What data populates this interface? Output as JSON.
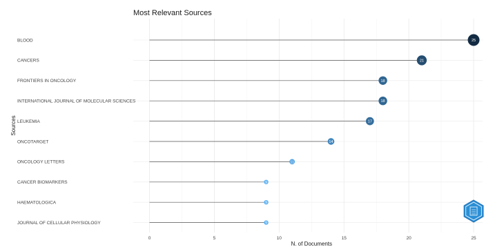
{
  "chart_data": {
    "type": "lollipop",
    "title": "Most Relevant Sources",
    "xlabel": "N. of Documents",
    "ylabel": "Sources",
    "xlim": [
      0,
      25
    ],
    "xticks": [
      "0",
      "5",
      "10",
      "15",
      "20",
      "25"
    ],
    "grid": true,
    "categories": [
      "BLOOD",
      "CANCERS",
      "FRONTIERS IN ONCOLOGY",
      "INTERNATIONAL JOURNAL OF MOLECULAR SCIENCES",
      "LEUKEMIA",
      "ONCOTARGET",
      "ONCOLOGY LETTERS",
      "CANCER BIOMARKERS",
      "HAEMATOLOGICA",
      "JOURNAL OF CELLULAR PHYSIOLOGY"
    ],
    "values": [
      25,
      21,
      18,
      18,
      17,
      14,
      11,
      9,
      9,
      9
    ],
    "color_high": "#132b43",
    "color_low": "#56b1f7"
  },
  "logo": {
    "name": "bibliometrix-logo",
    "color": "#2b8fd6"
  }
}
